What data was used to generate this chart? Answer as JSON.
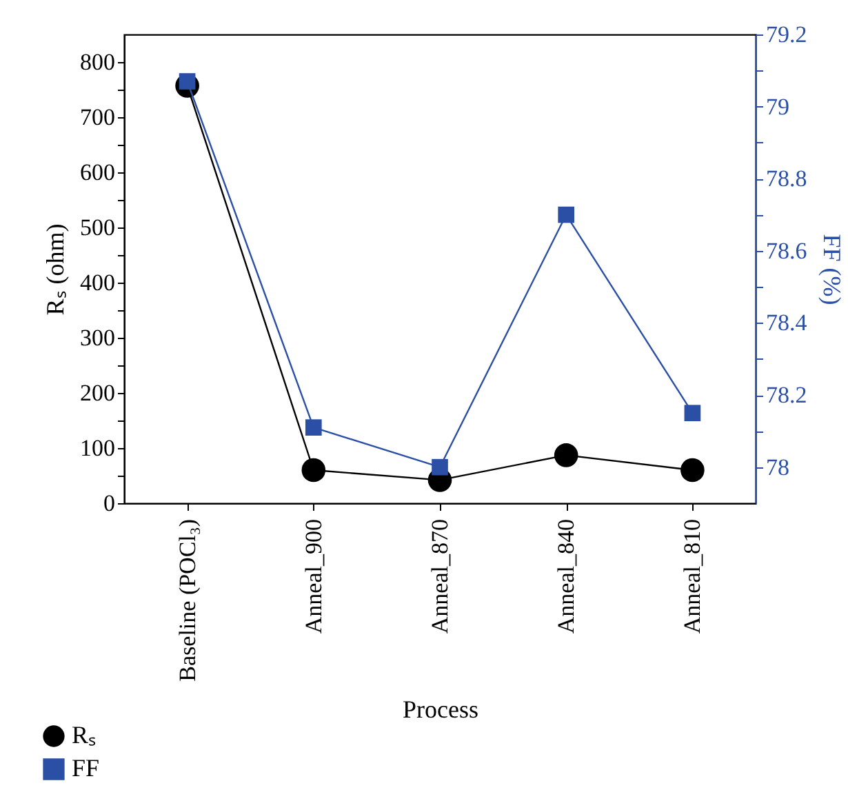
{
  "chart_data": {
    "type": "line",
    "xlabel": "Process",
    "ylabel": "Rₛ (ohm)",
    "y2label": "FF (%)",
    "categories": [
      "Baseline (POCl₃)",
      "Anneal_900",
      "Anneal_870",
      "Anneal_840",
      "Anneal_810"
    ],
    "series": [
      {
        "name": "Rₛ",
        "color": "#000000",
        "marker": "circle",
        "values": [
          757,
          60,
          42,
          87,
          60
        ]
      },
      {
        "name": "FF",
        "color": "#2a4fa5",
        "marker": "square",
        "axis": "y2",
        "values": [
          79.07,
          78.11,
          78.0,
          78.7,
          78.15
        ]
      }
    ],
    "ylim": [
      0,
      850
    ],
    "yticks": [
      0,
      {
        "value": 50,
        "label": null
      },
      100,
      {
        "value": 150,
        "label": null
      },
      200,
      {
        "value": 250,
        "label": null
      },
      300,
      {
        "value": 350,
        "label": null
      },
      400,
      {
        "value": 450,
        "label": null
      },
      500,
      {
        "value": 550,
        "label": null
      },
      600,
      {
        "value": 650,
        "label": null
      },
      700,
      {
        "value": 750,
        "label": null
      },
      800
    ],
    "y2lim": [
      77.9,
      79.2
    ],
    "y2ticks": [
      78,
      {
        "value": 78.1,
        "label": null
      },
      78.2,
      {
        "value": 78.3,
        "label": null
      },
      78.4,
      {
        "value": 78.5,
        "label": null
      },
      78.6,
      {
        "value": 78.7,
        "label": null
      },
      78.8,
      {
        "value": 78.9,
        "label": null
      },
      79,
      {
        "value": 79.1,
        "label": null
      },
      79.2
    ],
    "grid": false,
    "legend": "bottom left",
    "line_style": "solid"
  }
}
